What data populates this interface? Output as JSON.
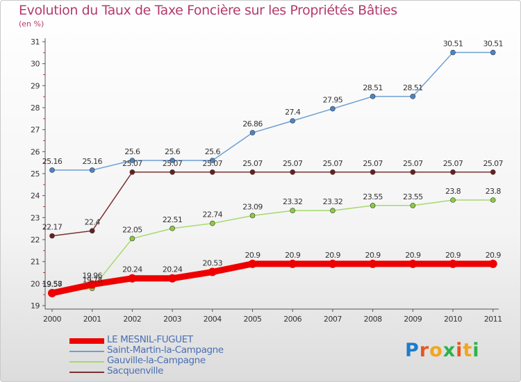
{
  "title": "Evolution du Taux de Taxe Foncière sur les Propriétés Bâties",
  "subtitle": "(en %)",
  "logo": {
    "letters": [
      "P",
      "r",
      "o",
      "x",
      "i",
      "t",
      "i"
    ],
    "colors": [
      "#1f7cc8",
      "#e8561f",
      "#f2a61c",
      "#2bb34a",
      "#e8561f",
      "#f2a61c",
      "#2bb34a"
    ]
  },
  "chart_data": {
    "type": "line",
    "x": [
      "2000",
      "2001",
      "2002",
      "2003",
      "2004",
      "2005",
      "2006",
      "2007",
      "2008",
      "2009",
      "2010",
      "2011"
    ],
    "ylim": [
      19,
      31
    ],
    "yticks": [
      "19",
      "20",
      "21",
      "22",
      "23",
      "24",
      "25",
      "26",
      "27",
      "28",
      "29",
      "30",
      "31"
    ],
    "grid": false,
    "legend_position": "bottom-left",
    "series": [
      {
        "name": "LE MESNIL-FUGUET",
        "color": "#ee0000",
        "thick": true,
        "values": [
          19.57,
          19.96,
          20.24,
          20.24,
          20.53,
          20.9,
          20.9,
          20.9,
          20.9,
          20.9,
          20.9,
          20.9
        ],
        "labels": [
          "19.57",
          "19.96",
          "20.24",
          "20.24",
          "20.53",
          "20.9",
          "20.9",
          "20.9",
          "20.9",
          "20.9",
          "20.9",
          "20.9"
        ]
      },
      {
        "name": "Saint-Martin-la-Campagne",
        "color": "#6d9fd4",
        "dot": "#4a86c8",
        "thick": false,
        "values": [
          25.16,
          25.16,
          25.6,
          25.6,
          25.6,
          26.86,
          27.4,
          27.95,
          28.51,
          28.51,
          30.51,
          30.51
        ],
        "labels": [
          "25.16",
          "25.16",
          "25.6",
          "25.6",
          "25.6",
          "26.86",
          "27.4",
          "27.95",
          "28.51",
          "28.51",
          "30.51",
          "30.51"
        ]
      },
      {
        "name": "Gauville-la-Campagne",
        "color": "#a6d86a",
        "dot": "#8ccc3f",
        "thick": false,
        "values": [
          19.58,
          19.78,
          22.05,
          22.51,
          22.74,
          23.09,
          23.32,
          23.32,
          23.55,
          23.55,
          23.8,
          23.8
        ],
        "labels": [
          "19.58",
          "19.78",
          "22.05",
          "22.51",
          "22.74",
          "23.09",
          "23.32",
          "23.32",
          "23.55",
          "23.55",
          "23.8",
          "23.8"
        ]
      },
      {
        "name": "Sacquenville",
        "color": "#7a3030",
        "dot": "#6a1f1f",
        "thick": false,
        "values": [
          22.17,
          22.4,
          25.07,
          25.07,
          25.07,
          25.07,
          25.07,
          25.07,
          25.07,
          25.07,
          25.07,
          25.07
        ],
        "labels": [
          "22.17",
          "22.4",
          "25.07",
          "25.07",
          "25.07",
          "25.07",
          "25.07",
          "25.07",
          "25.07",
          "25.07",
          "25.07",
          "25.07"
        ]
      }
    ]
  }
}
